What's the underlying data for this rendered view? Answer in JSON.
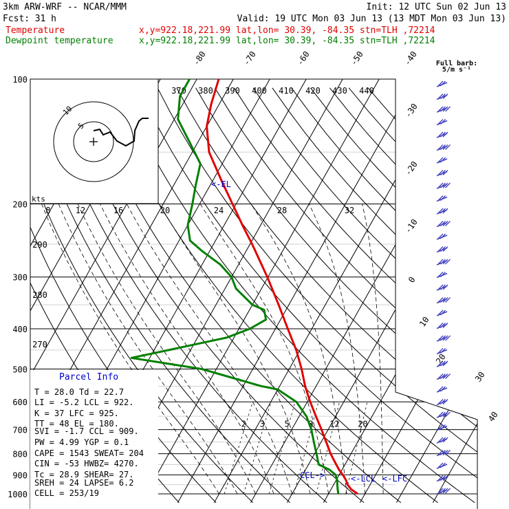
{
  "header": {
    "model": "3km ARW-WRF -- NCAR/MMM",
    "init": "Init: 12 UTC Sun 02 Jun 13",
    "fcst_label": "Fcst:",
    "fcst_value": "31 h",
    "valid": "Valid: 19 UTC Mon 03 Jun 13 (13 MDT Mon 03 Jun 13)",
    "temp_label": "Temperature",
    "temp_info": "x,y=922.18,221.99   lat,lon= 30.39, -84.35  stn=TLH ,72214",
    "dew_label": "Dewpoint temperature",
    "dew_info": "x,y=922.18,221.99   lat,lon= 30.39, -84.35  stn=TLH ,72214",
    "barb_legend": "Full barb:",
    "barb_units": "5/m s⁻¹"
  },
  "colors": {
    "temperature": "#e00000",
    "dewpoint": "#008000",
    "barbs": "#4040c0",
    "parcel": "#0000cc"
  },
  "chart_data": {
    "type": "line",
    "title": "",
    "ylabel": "",
    "xlabel": "",
    "y_scale": "log",
    "pressure_ticks": [
      "100",
      "200",
      "300",
      "400",
      "500",
      "600",
      "700",
      "800",
      "900",
      "1000"
    ],
    "isotherm_labels": [
      "-80",
      "-70",
      "-60",
      "-50",
      "-40",
      "-30",
      "-20",
      "-10",
      "0",
      "10",
      "20",
      "30",
      "40"
    ],
    "theta_labels": [
      "370",
      "380",
      "390",
      "400",
      "410",
      "420",
      "430",
      "440"
    ],
    "theta_left_labels": [
      "290",
      "280",
      "270"
    ],
    "mixing_ratio_labels": [
      "2",
      "3",
      "5",
      "8",
      "12",
      "20"
    ],
    "hodograph_rings": [
      "5",
      "10"
    ],
    "hodograph_axis_labels": [
      "8",
      "12",
      "16",
      "20",
      "24",
      "28",
      "32"
    ],
    "hodograph_units": "kts",
    "markers": {
      "el": "<-EL",
      "ccl": "CCL->",
      "lcl": "<-LCL",
      "lfc": "<-LFC"
    },
    "series": [
      {
        "name": "Temperature",
        "points": [
          [
            1000,
            28.0
          ],
          [
            975,
            25.5
          ],
          [
            950,
            23.8
          ],
          [
            925,
            22.6
          ],
          [
            900,
            21.0
          ],
          [
            875,
            19.2
          ],
          [
            850,
            17.6
          ],
          [
            825,
            16.0
          ],
          [
            800,
            14.4
          ],
          [
            775,
            12.9
          ],
          [
            750,
            11.4
          ],
          [
            725,
            9.8
          ],
          [
            700,
            8.2
          ],
          [
            650,
            4.6
          ],
          [
            600,
            0.8
          ],
          [
            550,
            -3.0
          ],
          [
            500,
            -6.6
          ],
          [
            450,
            -11.0
          ],
          [
            400,
            -16.6
          ],
          [
            350,
            -22.8
          ],
          [
            300,
            -30.2
          ],
          [
            250,
            -39.4
          ],
          [
            225,
            -45.0
          ],
          [
            200,
            -51.0
          ],
          [
            175,
            -57.8
          ],
          [
            150,
            -65.4
          ],
          [
            130,
            -70.0
          ],
          [
            115,
            -72.2
          ],
          [
            100,
            -74.0
          ]
        ]
      },
      {
        "name": "Dewpoint temperature",
        "points": [
          [
            1000,
            22.7
          ],
          [
            975,
            21.8
          ],
          [
            950,
            21.0
          ],
          [
            925,
            20.2
          ],
          [
            900,
            19.0
          ],
          [
            875,
            16.6
          ],
          [
            850,
            12.8
          ],
          [
            800,
            10.5
          ],
          [
            750,
            8.0
          ],
          [
            700,
            5.4
          ],
          [
            650,
            2.0
          ],
          [
            600,
            -3.0
          ],
          [
            560,
            -10.0
          ],
          [
            550,
            -15.0
          ],
          [
            500,
            -34.0
          ],
          [
            470,
            -55.0
          ],
          [
            450,
            -46.0
          ],
          [
            420,
            -32.0
          ],
          [
            400,
            -27.0
          ],
          [
            380,
            -24.0
          ],
          [
            360,
            -26.0
          ],
          [
            350,
            -30.0
          ],
          [
            320,
            -37.0
          ],
          [
            300,
            -40.0
          ],
          [
            280,
            -45.0
          ],
          [
            260,
            -52.0
          ],
          [
            245,
            -57.0
          ],
          [
            225,
            -60.0
          ],
          [
            200,
            -62.0
          ],
          [
            180,
            -64.0
          ],
          [
            160,
            -66.0
          ],
          [
            140,
            -73.0
          ],
          [
            125,
            -79.0
          ],
          [
            110,
            -82.0
          ],
          [
            100,
            -82.0
          ]
        ]
      }
    ],
    "wind_barbs_count": 33
  },
  "parcel_info": {
    "title": "Parcel Info",
    "rows": [
      "T  =    28.0  Td =  22.7",
      "LI =    -5.2  LCL =  922.",
      "K  =      37  LFC =  925.",
      "TT =      48  EL  =  180.",
      "SVI =   -1.7  CCL =  909.",
      "PW =    4.99  YGP =   0.1",
      "CAPE =  1543  SWEAT=  204",
      "CIN =    -53  HWBZ= 4270.",
      "Tc =    28.9  SHEAR=  27.",
      "SREH =    24  LAPSE=  6.2",
      "CELL = 253/19"
    ]
  }
}
